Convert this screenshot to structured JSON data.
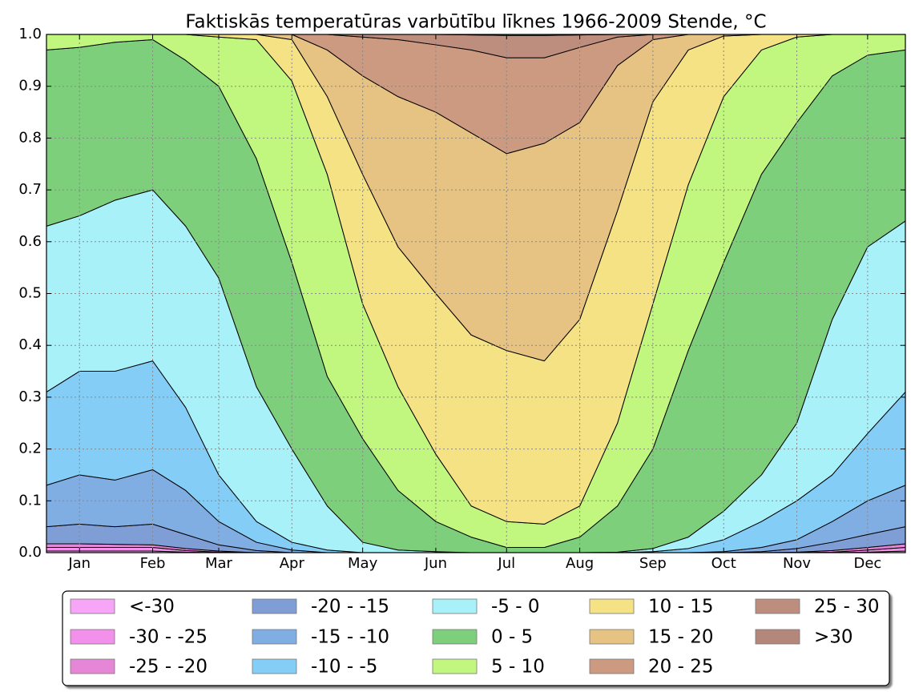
{
  "chart_data": {
    "type": "stacked-area",
    "title": "Faktiskās temperatūras varbūtību līknes 1966-2009 Stende, °C",
    "x": [
      1,
      15,
      30,
      46,
      60,
      74,
      90,
      105,
      120,
      135,
      150,
      166,
      181,
      196,
      212,
      227,
      243,
      258,
      273,
      288,
      304,
      319,
      334,
      349,
      365
    ],
    "xlim": [
      1,
      365
    ],
    "xticks": [
      {
        "value": 15,
        "label": "Jan"
      },
      {
        "value": 46,
        "label": "Feb"
      },
      {
        "value": 74,
        "label": "Mar"
      },
      {
        "value": 105,
        "label": "Apr"
      },
      {
        "value": 135,
        "label": "May"
      },
      {
        "value": 166,
        "label": "Jun"
      },
      {
        "value": 196,
        "label": "Jul"
      },
      {
        "value": 227,
        "label": "Aug"
      },
      {
        "value": 258,
        "label": "Sep"
      },
      {
        "value": 288,
        "label": "Oct"
      },
      {
        "value": 319,
        "label": "Nov"
      },
      {
        "value": 349,
        "label": "Dec"
      }
    ],
    "ylim": [
      0,
      1
    ],
    "yticks": [
      {
        "value": 0,
        "label": "0.0"
      },
      0.1,
      0.2,
      0.3,
      0.4,
      0.5,
      0.6,
      0.7,
      0.8,
      0.9,
      {
        "value": 1,
        "label": "1.0"
      }
    ],
    "grid": true,
    "legend": "bottom",
    "series": [
      {
        "name": "<-30",
        "color": "#f7a6f7",
        "values": [
          0.003,
          0.003,
          0.003,
          0.003,
          0.001,
          0,
          0,
          0,
          0,
          0,
          0,
          0,
          0,
          0,
          0,
          0,
          0,
          0,
          0,
          0,
          0,
          0,
          0,
          0.001,
          0.003
        ]
      },
      {
        "name": "-30 - -25",
        "color": "#f290ec",
        "values": [
          0.007,
          0.007,
          0.007,
          0.007,
          0.003,
          0.001,
          0,
          0,
          0,
          0,
          0,
          0,
          0,
          0,
          0,
          0,
          0,
          0,
          0,
          0,
          0,
          0,
          0.001,
          0.004,
          0.007
        ]
      },
      {
        "name": "-25 - -20",
        "color": "#e686d6",
        "values": [
          0.007,
          0.007,
          0.006,
          0.005,
          0.004,
          0.002,
          0,
          0,
          0,
          0,
          0,
          0,
          0,
          0,
          0,
          0,
          0,
          0,
          0,
          0,
          0,
          0.001,
          0.003,
          0.005,
          0.007
        ]
      },
      {
        "name": "-20 - -15",
        "color": "#7f9ed6",
        "values": [
          0.033,
          0.038,
          0.034,
          0.04,
          0.027,
          0.012,
          0.004,
          0,
          0,
          0,
          0,
          0,
          0,
          0,
          0,
          0,
          0,
          0,
          0,
          0,
          0.002,
          0.007,
          0.016,
          0.025,
          0.033
        ]
      },
      {
        "name": "-15 - -10",
        "color": "#80aee3",
        "values": [
          0.08,
          0.095,
          0.09,
          0.105,
          0.085,
          0.045,
          0.016,
          0.005,
          0,
          0,
          0,
          0,
          0,
          0,
          0,
          0,
          0,
          0,
          0,
          0.002,
          0.008,
          0.017,
          0.04,
          0.065,
          0.08
        ]
      },
      {
        "name": "-10 - -5",
        "color": "#84cdf6",
        "values": [
          0.18,
          0.2,
          0.21,
          0.21,
          0.16,
          0.09,
          0.04,
          0.015,
          0.005,
          0,
          0,
          0,
          0,
          0,
          0,
          0,
          0,
          0.002,
          0.008,
          0.023,
          0.05,
          0.075,
          0.09,
          0.13,
          0.18
        ]
      },
      {
        "name": "-5 - 0",
        "color": "#a9f1f8",
        "values": [
          0.32,
          0.3,
          0.33,
          0.33,
          0.35,
          0.38,
          0.26,
          0.18,
          0.085,
          0.02,
          0.005,
          0.002,
          0,
          0,
          0,
          0,
          0.001,
          0.006,
          0.022,
          0.055,
          0.09,
          0.15,
          0.3,
          0.36,
          0.33
        ]
      },
      {
        "name": "0 - 5",
        "color": "#7ecf7b",
        "values": [
          0.34,
          0.325,
          0.305,
          0.29,
          0.32,
          0.37,
          0.44,
          0.36,
          0.25,
          0.2,
          0.115,
          0.058,
          0.03,
          0.01,
          0.01,
          0.03,
          0.089,
          0.192,
          0.36,
          0.48,
          0.58,
          0.58,
          0.47,
          0.37,
          0.33
        ]
      },
      {
        "name": "5 - 10",
        "color": "#c1f77f",
        "values": [
          0.03,
          0.025,
          0.015,
          0.01,
          0.05,
          0.095,
          0.23,
          0.35,
          0.39,
          0.26,
          0.2,
          0.13,
          0.06,
          0.05,
          0.045,
          0.06,
          0.16,
          0.28,
          0.32,
          0.32,
          0.24,
          0.165,
          0.08,
          0.04,
          0.03
        ]
      },
      {
        "name": "10 - 15",
        "color": "#f5e285",
        "values": [
          0,
          0,
          0,
          0,
          0,
          0.005,
          0.01,
          0.08,
          0.15,
          0.25,
          0.27,
          0.31,
          0.33,
          0.33,
          0.315,
          0.36,
          0.41,
          0.39,
          0.26,
          0.117,
          0.03,
          0.005,
          0,
          0,
          0
        ]
      },
      {
        "name": "15 - 20",
        "color": "#e6c283",
        "values": [
          0,
          0,
          0,
          0,
          0,
          0,
          0,
          0.01,
          0.09,
          0.19,
          0.29,
          0.35,
          0.39,
          0.38,
          0.42,
          0.38,
          0.28,
          0.12,
          0.03,
          0.003,
          0,
          0,
          0,
          0,
          0
        ]
      },
      {
        "name": "20 - 25",
        "color": "#cc9a80",
        "values": [
          0,
          0,
          0,
          0,
          0,
          0,
          0,
          0,
          0.03,
          0.075,
          0.11,
          0.13,
          0.16,
          0.185,
          0.165,
          0.145,
          0.055,
          0.01,
          0,
          0,
          0,
          0,
          0,
          0,
          0
        ]
      },
      {
        "name": "25 - 30",
        "color": "#bd8d7d",
        "values": [
          0,
          0,
          0,
          0,
          0,
          0,
          0,
          0,
          0,
          0.005,
          0.01,
          0.02,
          0.029,
          0.043,
          0.043,
          0.024,
          0.005,
          0,
          0,
          0,
          0,
          0,
          0,
          0,
          0
        ]
      },
      {
        "name": ">30",
        "color": "#b4877b",
        "values": [
          0,
          0,
          0,
          0,
          0,
          0,
          0,
          0,
          0,
          0,
          0,
          0,
          0.001,
          0.002,
          0.002,
          0.001,
          0,
          0,
          0,
          0,
          0,
          0,
          0,
          0,
          0
        ]
      }
    ]
  }
}
